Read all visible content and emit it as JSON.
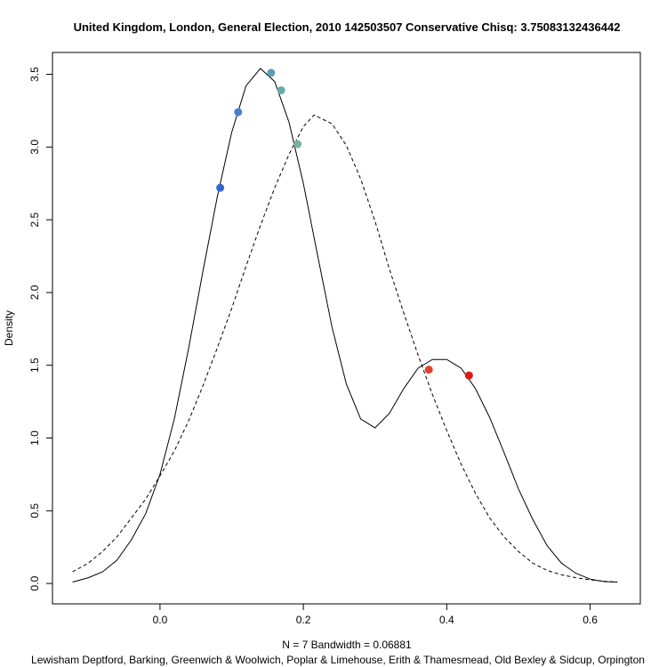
{
  "chart_data": {
    "type": "line",
    "title": "United Kingdom, London, General Election, 2010 142503507 Conservative Chisq: 3.75083132436442",
    "xlabel": "N = 7   Bandwidth = 0.06881",
    "sub_label": "Lewisham Deptford, Barking, Greenwich & Woolwich, Poplar & Limehouse, Erith & Thamesmead, Old Bexley & Sidcup, Orpington",
    "ylabel": "Density",
    "xlim": [
      -0.15,
      0.67
    ],
    "ylim": [
      -0.14,
      3.65
    ],
    "xticks": [
      0.0,
      0.2,
      0.4,
      0.6
    ],
    "xtick_labels": [
      "0.0",
      "0.2",
      "0.4",
      "0.6"
    ],
    "yticks": [
      0.0,
      0.5,
      1.0,
      1.5,
      2.0,
      2.5,
      3.0,
      3.5
    ],
    "ytick_labels": [
      "0.0",
      "0.5",
      "1.0",
      "1.5",
      "2.0",
      "2.5",
      "3.0",
      "3.5"
    ],
    "grid": false,
    "series": [
      {
        "style": "solid",
        "x": [
          -0.122,
          -0.1,
          -0.08,
          -0.06,
          -0.04,
          -0.02,
          0.0,
          0.02,
          0.04,
          0.06,
          0.08,
          0.1,
          0.12,
          0.14,
          0.16,
          0.18,
          0.2,
          0.22,
          0.24,
          0.26,
          0.28,
          0.3,
          0.32,
          0.34,
          0.36,
          0.38,
          0.4,
          0.42,
          0.44,
          0.46,
          0.48,
          0.5,
          0.52,
          0.54,
          0.56,
          0.58,
          0.6,
          0.62,
          0.638
        ],
        "y": [
          0.01,
          0.04,
          0.08,
          0.16,
          0.3,
          0.48,
          0.75,
          1.13,
          1.62,
          2.15,
          2.66,
          3.1,
          3.42,
          3.54,
          3.45,
          3.17,
          2.75,
          2.25,
          1.76,
          1.37,
          1.13,
          1.07,
          1.17,
          1.34,
          1.48,
          1.54,
          1.54,
          1.48,
          1.34,
          1.14,
          0.9,
          0.65,
          0.44,
          0.26,
          0.14,
          0.07,
          0.03,
          0.013,
          0.01
        ]
      },
      {
        "style": "dashed",
        "x": [
          -0.122,
          -0.1,
          -0.08,
          -0.06,
          -0.04,
          -0.02,
          0.0,
          0.02,
          0.04,
          0.06,
          0.08,
          0.1,
          0.12,
          0.14,
          0.16,
          0.18,
          0.2,
          0.215,
          0.24,
          0.26,
          0.28,
          0.3,
          0.32,
          0.34,
          0.36,
          0.38,
          0.4,
          0.42,
          0.44,
          0.46,
          0.48,
          0.5,
          0.52,
          0.54,
          0.56,
          0.58,
          0.6,
          0.62,
          0.638
        ],
        "y": [
          0.08,
          0.14,
          0.22,
          0.32,
          0.45,
          0.58,
          0.74,
          0.91,
          1.12,
          1.36,
          1.62,
          1.89,
          2.18,
          2.46,
          2.72,
          2.95,
          3.14,
          3.22,
          3.16,
          3.01,
          2.78,
          2.49,
          2.16,
          1.86,
          1.57,
          1.3,
          1.05,
          0.82,
          0.62,
          0.45,
          0.32,
          0.22,
          0.14,
          0.09,
          0.06,
          0.04,
          0.025,
          0.015,
          0.01
        ]
      }
    ],
    "points": [
      {
        "x": 0.084,
        "y": 2.72,
        "color": "#3366cc"
      },
      {
        "x": 0.109,
        "y": 3.24,
        "color": "#4a7fd0"
      },
      {
        "x": 0.155,
        "y": 3.51,
        "color": "#5b9fb5"
      },
      {
        "x": 0.169,
        "y": 3.39,
        "color": "#66aaaa"
      },
      {
        "x": 0.192,
        "y": 3.02,
        "color": "#77b49b"
      },
      {
        "x": 0.375,
        "y": 1.47,
        "color": "#e0402a"
      },
      {
        "x": 0.431,
        "y": 1.43,
        "color": "#e01a0f"
      }
    ]
  }
}
